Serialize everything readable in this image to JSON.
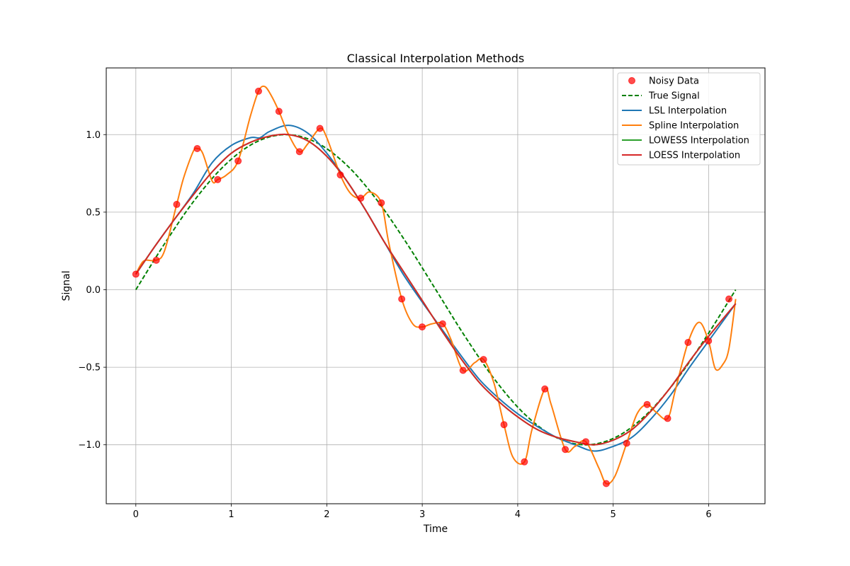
{
  "chart_data": {
    "type": "line",
    "title": "Classical Interpolation Methods",
    "xlabel": "Time",
    "ylabel": "Signal",
    "xlim": [
      -0.31,
      6.59
    ],
    "ylim": [
      -1.38,
      1.43
    ],
    "xticks": [
      0,
      1,
      2,
      3,
      4,
      5,
      6
    ],
    "xtick_labels": [
      "0",
      "1",
      "2",
      "3",
      "4",
      "5",
      "6"
    ],
    "yticks": [
      -1.0,
      -0.5,
      0.0,
      0.5,
      1.0
    ],
    "ytick_labels": [
      "−1.0",
      "−0.5",
      "0.0",
      "0.5",
      "1.0"
    ],
    "grid": true,
    "legend_position": "top-right",
    "colors": {
      "noisy": "#ff0000",
      "true": "#008000",
      "lsl": "#1f77b4",
      "spline": "#ff7f0e",
      "lowess": "#2ca02c",
      "loess": "#d62728",
      "grid": "#b0b0b0"
    },
    "noisy_data": {
      "name": "Noisy Data",
      "x": [
        0.0,
        0.214,
        0.428,
        0.643,
        0.857,
        1.071,
        1.285,
        1.499,
        1.714,
        1.928,
        2.142,
        2.356,
        2.571,
        2.785,
        2.999,
        3.213,
        3.427,
        3.642,
        3.856,
        4.07,
        4.284,
        4.498,
        4.713,
        4.927,
        5.141,
        5.355,
        5.57,
        5.784,
        5.998,
        6.212
      ],
      "y": [
        0.1,
        0.19,
        0.55,
        0.91,
        0.71,
        0.83,
        1.28,
        1.15,
        0.89,
        1.04,
        0.74,
        0.59,
        0.56,
        -0.06,
        -0.24,
        -0.22,
        -0.52,
        -0.45,
        -0.87,
        -1.11,
        -0.64,
        -1.03,
        -0.98,
        -1.25,
        -0.99,
        -0.74,
        -0.83,
        -0.34,
        -0.33,
        -0.06
      ]
    },
    "series": [
      {
        "name": "True Signal",
        "x": [
          0.0,
          0.314,
          0.628,
          0.942,
          1.257,
          1.571,
          1.885,
          2.199,
          2.513,
          2.827,
          3.142,
          3.456,
          3.77,
          4.084,
          4.398,
          4.712,
          5.027,
          5.341,
          5.655,
          5.969,
          6.283
        ],
        "y": [
          0.0,
          0.309,
          0.588,
          0.809,
          0.951,
          1.0,
          0.951,
          0.809,
          0.588,
          0.309,
          0.0,
          -0.309,
          -0.588,
          -0.809,
          -0.951,
          -1.0,
          -0.951,
          -0.809,
          -0.588,
          -0.309,
          0.0
        ]
      },
      {
        "name": "LSL Interpolation",
        "x": [
          0.0,
          0.2,
          0.4,
          0.6,
          0.8,
          1.0,
          1.2,
          1.3,
          1.4,
          1.6,
          1.8,
          2.0,
          2.2,
          2.4,
          2.6,
          2.8,
          3.0,
          3.2,
          3.4,
          3.6,
          3.8,
          4.0,
          4.2,
          4.4,
          4.6,
          4.8,
          5.0,
          5.2,
          5.4,
          5.6,
          5.8,
          6.0,
          6.283
        ],
        "y": [
          0.1,
          0.28,
          0.45,
          0.62,
          0.82,
          0.93,
          0.98,
          0.98,
          1.02,
          1.06,
          1.01,
          0.88,
          0.71,
          0.52,
          0.31,
          0.1,
          -0.08,
          -0.25,
          -0.42,
          -0.58,
          -0.7,
          -0.8,
          -0.88,
          -0.95,
          -1.0,
          -1.04,
          -1.01,
          -0.95,
          -0.83,
          -0.68,
          -0.5,
          -0.33,
          -0.09
        ]
      },
      {
        "name": "Spline Interpolation",
        "x": [
          0.0,
          0.05,
          0.1,
          0.214,
          0.3,
          0.428,
          0.5,
          0.6,
          0.643,
          0.7,
          0.8,
          0.857,
          0.95,
          1.071,
          1.2,
          1.285,
          1.35,
          1.42,
          1.499,
          1.6,
          1.714,
          1.8,
          1.928,
          2.0,
          2.142,
          2.25,
          2.356,
          2.45,
          2.571,
          2.65,
          2.785,
          2.9,
          2.999,
          3.1,
          3.213,
          3.3,
          3.427,
          3.55,
          3.642,
          3.75,
          3.856,
          3.95,
          4.07,
          4.15,
          4.284,
          4.35,
          4.498,
          4.6,
          4.713,
          4.85,
          4.927,
          5.02,
          5.141,
          5.25,
          5.355,
          5.45,
          5.57,
          5.65,
          5.784,
          5.9,
          5.998,
          6.07,
          6.15,
          6.212,
          6.283
        ],
        "y": [
          0.1,
          0.16,
          0.19,
          0.19,
          0.25,
          0.55,
          0.72,
          0.89,
          0.91,
          0.88,
          0.7,
          0.71,
          0.74,
          0.83,
          1.12,
          1.28,
          1.31,
          1.25,
          1.15,
          1.0,
          0.89,
          0.94,
          1.04,
          0.98,
          0.74,
          0.62,
          0.59,
          0.63,
          0.56,
          0.3,
          -0.06,
          -0.22,
          -0.24,
          -0.22,
          -0.22,
          -0.32,
          -0.52,
          -0.47,
          -0.45,
          -0.6,
          -0.87,
          -1.08,
          -1.11,
          -0.9,
          -0.64,
          -0.74,
          -1.03,
          -1.01,
          -0.98,
          -1.15,
          -1.25,
          -1.2,
          -0.99,
          -0.8,
          -0.74,
          -0.79,
          -0.83,
          -0.65,
          -0.34,
          -0.21,
          -0.33,
          -0.51,
          -0.48,
          -0.38,
          -0.06
        ]
      },
      {
        "name": "LOWESS Interpolation",
        "x": [
          0.0,
          0.2,
          0.4,
          0.6,
          0.8,
          1.0,
          1.2,
          1.4,
          1.6,
          1.8,
          2.0,
          2.2,
          2.4,
          2.6,
          2.8,
          3.0,
          3.2,
          3.4,
          3.6,
          3.8,
          4.0,
          4.2,
          4.4,
          4.6,
          4.8,
          5.0,
          5.2,
          5.4,
          5.6,
          5.8,
          6.0,
          6.283
        ],
        "y": [
          0.1,
          0.28,
          0.45,
          0.61,
          0.76,
          0.88,
          0.95,
          0.99,
          1.0,
          0.96,
          0.86,
          0.71,
          0.52,
          0.31,
          0.12,
          -0.07,
          -0.26,
          -0.44,
          -0.6,
          -0.72,
          -0.82,
          -0.9,
          -0.95,
          -0.98,
          -1.0,
          -0.97,
          -0.9,
          -0.78,
          -0.63,
          -0.46,
          -0.3,
          -0.09
        ]
      },
      {
        "name": "LOESS Interpolation",
        "x": [
          0.0,
          0.2,
          0.4,
          0.6,
          0.8,
          1.0,
          1.2,
          1.4,
          1.6,
          1.8,
          2.0,
          2.2,
          2.4,
          2.6,
          2.8,
          3.0,
          3.2,
          3.4,
          3.6,
          3.8,
          4.0,
          4.2,
          4.4,
          4.6,
          4.8,
          5.0,
          5.2,
          5.4,
          5.6,
          5.8,
          6.0,
          6.283
        ],
        "y": [
          0.1,
          0.28,
          0.45,
          0.61,
          0.76,
          0.88,
          0.95,
          0.99,
          1.0,
          0.96,
          0.86,
          0.71,
          0.52,
          0.31,
          0.12,
          -0.07,
          -0.26,
          -0.44,
          -0.6,
          -0.72,
          -0.82,
          -0.9,
          -0.95,
          -0.98,
          -1.0,
          -0.97,
          -0.9,
          -0.78,
          -0.63,
          -0.46,
          -0.3,
          -0.09
        ]
      }
    ]
  }
}
